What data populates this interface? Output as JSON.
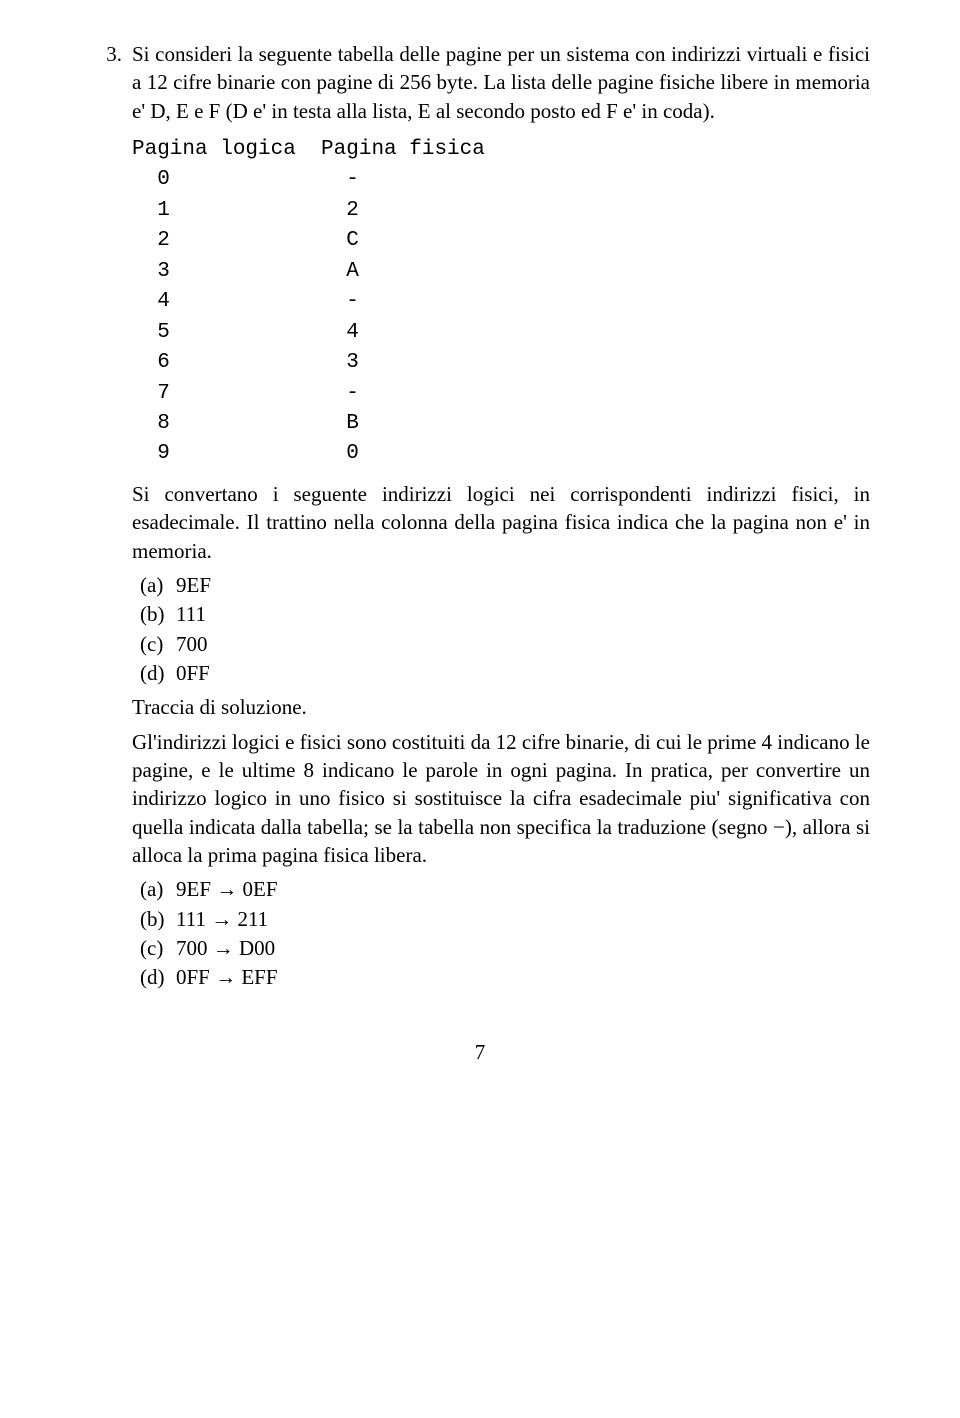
{
  "question": {
    "number": "3.",
    "intro": "Si consideri la seguente tabella delle pagine per un sistema con indirizzi virtuali e fisici a 12 cifre binarie con pagine di 256 byte. La lista delle pagine fisiche libere in memoria e' D, E e F (D e' in testa alla lista, E al secondo posto ed F e' in coda).",
    "code_header": "Pagina logica  Pagina fisica",
    "table": [
      {
        "logica": "0",
        "fisica": "-"
      },
      {
        "logica": "1",
        "fisica": "2"
      },
      {
        "logica": "2",
        "fisica": "C"
      },
      {
        "logica": "3",
        "fisica": "A"
      },
      {
        "logica": "4",
        "fisica": "-"
      },
      {
        "logica": "5",
        "fisica": "4"
      },
      {
        "logica": "6",
        "fisica": "3"
      },
      {
        "logica": "7",
        "fisica": "-"
      },
      {
        "logica": "8",
        "fisica": "B"
      },
      {
        "logica": "9",
        "fisica": "0"
      }
    ],
    "mid_text": "Si convertano i seguente indirizzi logici nei corrispondenti indirizzi fisici, in esadecimale. Il trattino nella colonna della pagina fisica indica che la pagina non e' in memoria.",
    "items1": [
      {
        "label": "(a)",
        "text": "9EF"
      },
      {
        "label": "(b)",
        "text": "111"
      },
      {
        "label": "(c)",
        "text": "700"
      },
      {
        "label": "(d)",
        "text": "0FF"
      }
    ],
    "solution_title": "Traccia di soluzione.",
    "solution_text": "Gl'indirizzi logici e fisici sono costituiti da 12 cifre binarie, di cui le prime 4 indicano le pagine, e le ultime 8 indicano le parole in ogni pagina. In pratica, per convertire un indirizzo logico in uno fisico si sostituisce la cifra esadecimale piu' significativa con quella indicata dalla tabella; se la tabella non specifica la traduzione (segno −), allora si alloca la prima pagina fisica libera.",
    "items2": [
      {
        "label": "(a)",
        "text": "9EF → 0EF"
      },
      {
        "label": "(b)",
        "text": "111 → 211"
      },
      {
        "label": "(c)",
        "text": "700 → D00"
      },
      {
        "label": "(d)",
        "text": "0FF → EFF"
      }
    ]
  },
  "page_number": "7"
}
